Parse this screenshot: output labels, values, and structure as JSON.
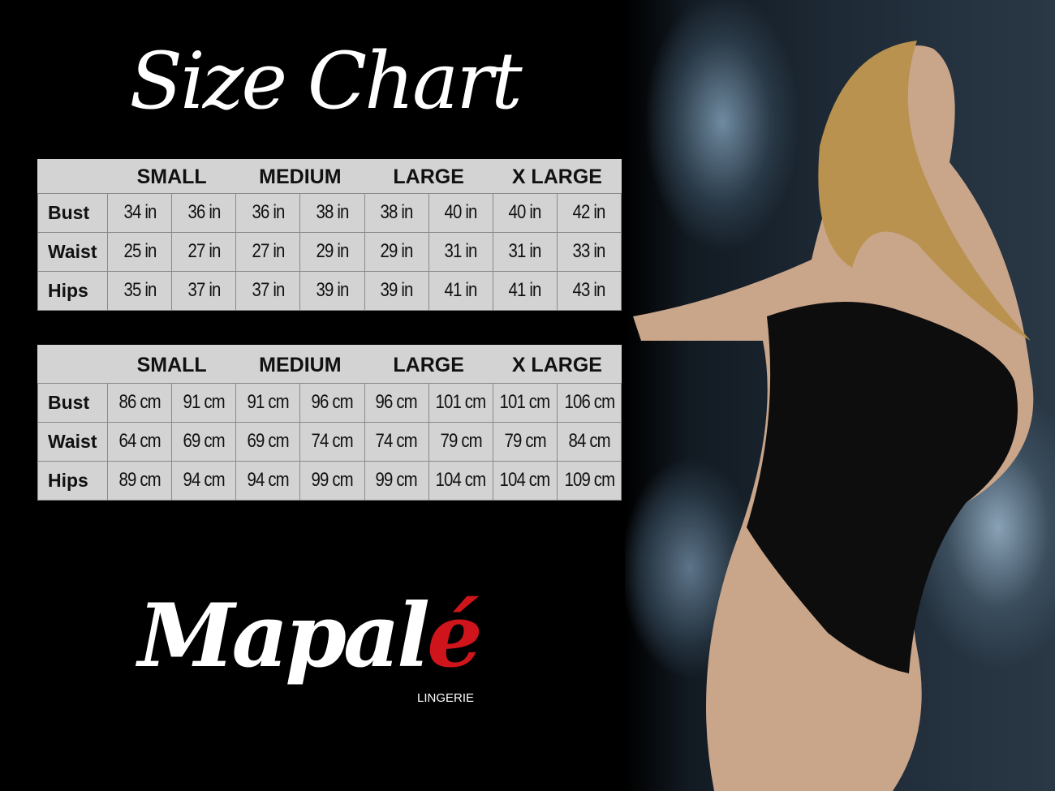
{
  "title": "Size Chart",
  "sizes": [
    "SMALL",
    "MEDIUM",
    "LARGE",
    "X LARGE"
  ],
  "inches": [
    {
      "label": "Bust",
      "values": [
        "34 in",
        "36 in",
        "36 in",
        "38 in",
        "38 in",
        "40 in",
        "40 in",
        "42 in"
      ]
    },
    {
      "label": "Waist",
      "values": [
        "25 in",
        "27 in",
        "27 in",
        "29 in",
        "29 in",
        "31 in",
        "31 in",
        "33 in"
      ]
    },
    {
      "label": "Hips",
      "values": [
        "35 in",
        "37 in",
        "37 in",
        "39 in",
        "39 in",
        "41 in",
        "41 in",
        "43 in"
      ]
    }
  ],
  "cm": [
    {
      "label": "Bust",
      "values": [
        "86 cm",
        "91 cm",
        "91 cm",
        "96 cm",
        "96 cm",
        "101 cm",
        "101 cm",
        "106 cm"
      ]
    },
    {
      "label": "Waist",
      "values": [
        "64 cm",
        "69 cm",
        "69 cm",
        "74 cm",
        "74 cm",
        "79  cm",
        "79 cm",
        "84 cm"
      ]
    },
    {
      "label": "Hips",
      "values": [
        "89 cm",
        "94 cm",
        "94 cm",
        "99 cm",
        "99 cm",
        "104 cm",
        "104 cm",
        "109 cm"
      ]
    }
  ],
  "logo": {
    "main": "Mapal",
    "accent": "é",
    "sub": "LINGERIE",
    "accent_color": "#d0141c"
  }
}
